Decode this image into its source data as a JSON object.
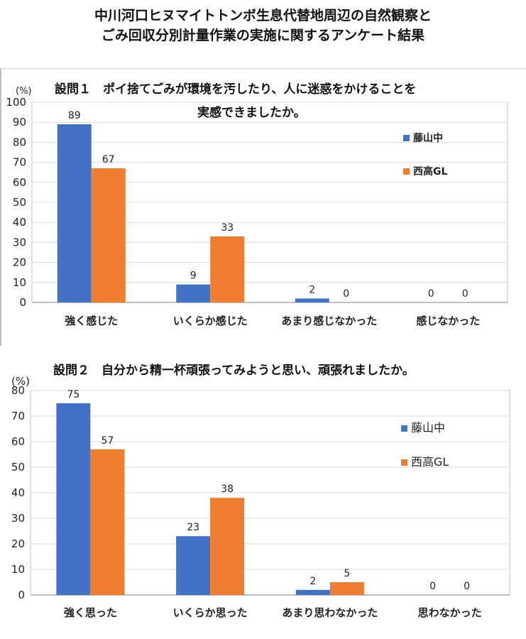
{
  "page": {
    "title_line1": "中川河口ヒヌマイトトンボ生息代替地周辺の自然観察と",
    "title_line2": "ごみ回収分別計量作業の実施に関するアンケート結果"
  },
  "colors": {
    "series1": "#4472C4",
    "series2": "#ED7D31",
    "grid": "#d9d9d9",
    "axis": "#7f7f7f"
  },
  "chart_data": [
    {
      "type": "bar",
      "title": "設問１　ポイ捨てごみが環境を汚したり、人に迷惑をかけることを",
      "title_line2": "実感できましたか。",
      "unit_label": "(%)",
      "ylim": [
        0,
        100
      ],
      "yticks": [
        0,
        10,
        20,
        30,
        40,
        50,
        60,
        70,
        80,
        90,
        100
      ],
      "grid": true,
      "legend_position": "right",
      "categories": [
        "強く感じた",
        "いくらか感じた",
        "あまり感じなかった",
        "感じなかった"
      ],
      "series": [
        {
          "name": "藤山中",
          "values": [
            89,
            9,
            2,
            0
          ]
        },
        {
          "name": "西高GL",
          "values": [
            67,
            33,
            0,
            0
          ]
        }
      ]
    },
    {
      "type": "bar",
      "title": "設問２　自分から精一杯頑張ってみようと思い、頑張れましたか。",
      "unit_label": "(%)",
      "ylim": [
        0,
        80
      ],
      "yticks": [
        0,
        10,
        20,
        30,
        40,
        50,
        60,
        70,
        80
      ],
      "grid": true,
      "legend_position": "right",
      "categories": [
        "強く思った",
        "いくらか思った",
        "あまり思わなかった",
        "思わなかった"
      ],
      "series": [
        {
          "name": "藤山中",
          "values": [
            75,
            23,
            2,
            0
          ]
        },
        {
          "name": "西高GL",
          "values": [
            57,
            38,
            5,
            0
          ]
        }
      ]
    }
  ]
}
